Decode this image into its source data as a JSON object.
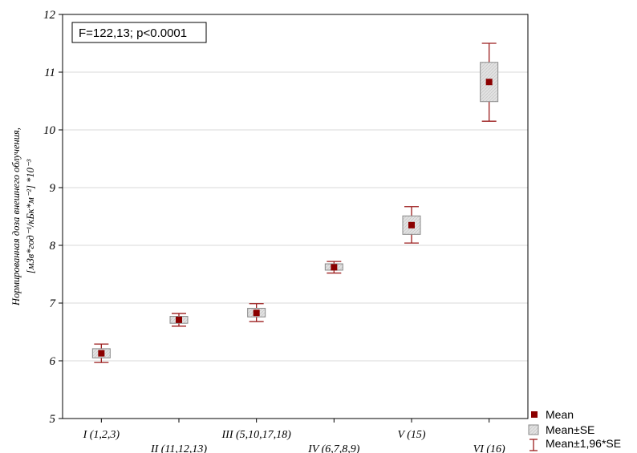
{
  "chart_data": {
    "type": "box",
    "annotation": "F=122,13; p<0.0001",
    "ylabel_line1": "Нормированная доза внешнего облучения,",
    "ylabel_line2": "[мЗв*год⁻¹/кБк*м⁻²] *10⁻³",
    "ylim": [
      5,
      12
    ],
    "yticks": [
      "5",
      "6",
      "7",
      "8",
      "9",
      "10",
      "11",
      "12"
    ],
    "grid": true,
    "legend_position": "bottom-right",
    "categories": [
      "I (1,2,3)",
      "II (11,12,13)",
      "III (5,10,17,18)",
      "IV (6,7,8,9)",
      "V (15)",
      "VI (16)"
    ],
    "mean": [
      6.13,
      6.71,
      6.83,
      7.62,
      8.35,
      10.83
    ],
    "mean_minus_se": [
      6.05,
      6.65,
      6.76,
      7.57,
      8.19,
      10.49
    ],
    "mean_plus_se": [
      6.21,
      6.77,
      6.91,
      7.68,
      8.51,
      11.17
    ],
    "whisker_low": [
      5.97,
      6.6,
      6.68,
      7.52,
      8.04,
      10.15
    ],
    "whisker_high": [
      6.29,
      6.82,
      6.99,
      7.72,
      8.67,
      11.5
    ],
    "legend": [
      "Mean",
      "Mean±SE",
      "Mean±1,96*SE"
    ],
    "colors": {
      "mean": "#8b0000",
      "whisker": "#9b1c1c",
      "box_fill": "#dcdcdc",
      "box_stroke": "#8a8a8a",
      "grid": "#d9d9d9",
      "axis": "#000000"
    }
  }
}
